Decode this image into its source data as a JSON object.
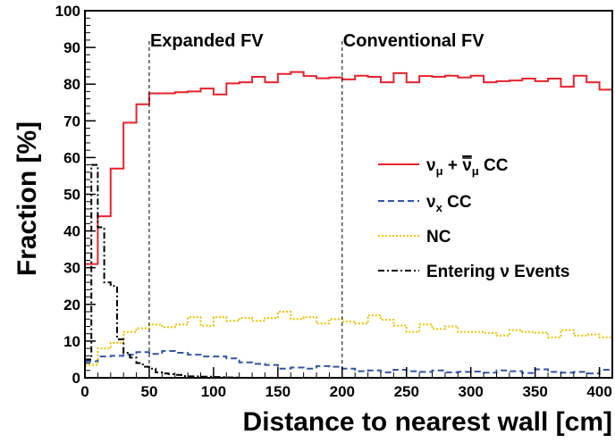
{
  "chart_data": {
    "type": "line",
    "title": "",
    "xlabel": "Distance to nearest wall [cm]",
    "ylabel": "Fraction [%]",
    "xlim": [
      0,
      410
    ],
    "ylim": [
      0,
      100
    ],
    "xticks": [
      0,
      50,
      100,
      150,
      200,
      250,
      300,
      350,
      400
    ],
    "yticks": [
      0,
      10,
      20,
      30,
      40,
      50,
      60,
      70,
      80,
      90,
      100
    ],
    "grid": false,
    "legend_position": "right",
    "annotations": [
      {
        "text": "Expanded FV",
        "x": 50
      },
      {
        "text": "Conventional FV",
        "x": 200
      }
    ],
    "series": [
      {
        "name": "νμ + ν̄μ CC",
        "legend": {
          "nu": "ν",
          "sub": "μ",
          "plus": " + ",
          "nubar": "ν",
          "sub2": "μ",
          "suffix": " CC"
        },
        "color": "#e8232d",
        "dash": "",
        "width": 2,
        "x": [
          0,
          10,
          20,
          30,
          40,
          50,
          60,
          70,
          80,
          90,
          100,
          110,
          120,
          130,
          140,
          150,
          160,
          170,
          180,
          190,
          200,
          210,
          220,
          230,
          240,
          250,
          260,
          270,
          280,
          290,
          300,
          310,
          320,
          330,
          340,
          350,
          360,
          370,
          380,
          390,
          400
        ],
        "values": [
          31,
          44,
          57,
          69.5,
          74.5,
          77.5,
          77.5,
          77.8,
          78,
          78.8,
          77.2,
          80.2,
          80.5,
          82,
          80.5,
          82.8,
          83.3,
          82.2,
          81.6,
          81.8,
          81.3,
          82.3,
          82,
          80.5,
          83,
          80.5,
          82.2,
          82,
          82.3,
          81.8,
          82.3,
          80.5,
          80.8,
          81,
          81.5,
          80.8,
          81.5,
          79.3,
          82.3,
          80.5,
          78.5
        ]
      },
      {
        "name": "νx CC",
        "legend": {
          "nu": "ν",
          "sub": "x",
          "suffix": " CC"
        },
        "color": "#3355a8",
        "dash": "7,4",
        "width": 2,
        "x": [
          0,
          10,
          20,
          30,
          40,
          50,
          60,
          70,
          80,
          90,
          100,
          110,
          120,
          130,
          140,
          150,
          160,
          170,
          180,
          190,
          200,
          210,
          220,
          230,
          240,
          250,
          260,
          270,
          280,
          290,
          300,
          310,
          320,
          330,
          340,
          350,
          360,
          370,
          380,
          390,
          400
        ],
        "values": [
          4.5,
          5.8,
          6.0,
          6.3,
          7.0,
          6.5,
          7.3,
          6.8,
          6.3,
          5.8,
          5.8,
          5.3,
          4.2,
          3.8,
          3.5,
          2.5,
          2.8,
          2.5,
          3.2,
          3.0,
          2.5,
          1.8,
          2.0,
          1.5,
          2.2,
          1.8,
          1.6,
          2.0,
          1.5,
          1.6,
          1.7,
          1.4,
          2.0,
          1.8,
          1.3,
          2.3,
          1.6,
          1.4,
          1.6,
          1.2,
          2.2
        ]
      },
      {
        "name": "NC",
        "legend": {
          "nu": "",
          "sub": "",
          "suffix": "NC"
        },
        "color": "#e8c200",
        "dash": "2,2",
        "width": 2,
        "x": [
          0,
          10,
          20,
          30,
          40,
          50,
          60,
          70,
          80,
          90,
          100,
          110,
          120,
          130,
          140,
          150,
          160,
          170,
          180,
          190,
          200,
          210,
          220,
          230,
          240,
          250,
          260,
          270,
          280,
          290,
          300,
          310,
          320,
          330,
          340,
          350,
          360,
          370,
          380,
          390,
          400
        ],
        "values": [
          3.5,
          8.0,
          9.5,
          12.5,
          13.5,
          14.5,
          13.8,
          14.5,
          16.5,
          14.2,
          16.5,
          15.5,
          16.3,
          15.5,
          16.3,
          18.0,
          16.0,
          16.5,
          14.8,
          16.0,
          15.3,
          14.8,
          17.0,
          15.8,
          14.2,
          12.5,
          14.5,
          13.3,
          14.0,
          12.5,
          12.5,
          12.2,
          11.5,
          13.0,
          12.5,
          12.3,
          11.0,
          13.0,
          11.5,
          11.8,
          11.0
        ]
      },
      {
        "name": "Entering ν Events",
        "legend": {
          "nu": "",
          "sub": "",
          "suffix": "Entering ν Events"
        },
        "color": "#000000",
        "dash": "7,3,2,3",
        "width": 2,
        "x": [
          0,
          5,
          10,
          15,
          20,
          25,
          30,
          35,
          40,
          45,
          50,
          55,
          60,
          65,
          70,
          75,
          80,
          90,
          100,
          110,
          120
        ],
        "values": [
          5,
          58,
          41,
          26,
          25,
          10.5,
          6.8,
          5.5,
          4.0,
          3.0,
          2.5,
          1.5,
          1.2,
          1.0,
          0.8,
          0.5,
          0.4,
          0.3,
          0.2,
          0.1,
          0
        ]
      }
    ]
  }
}
